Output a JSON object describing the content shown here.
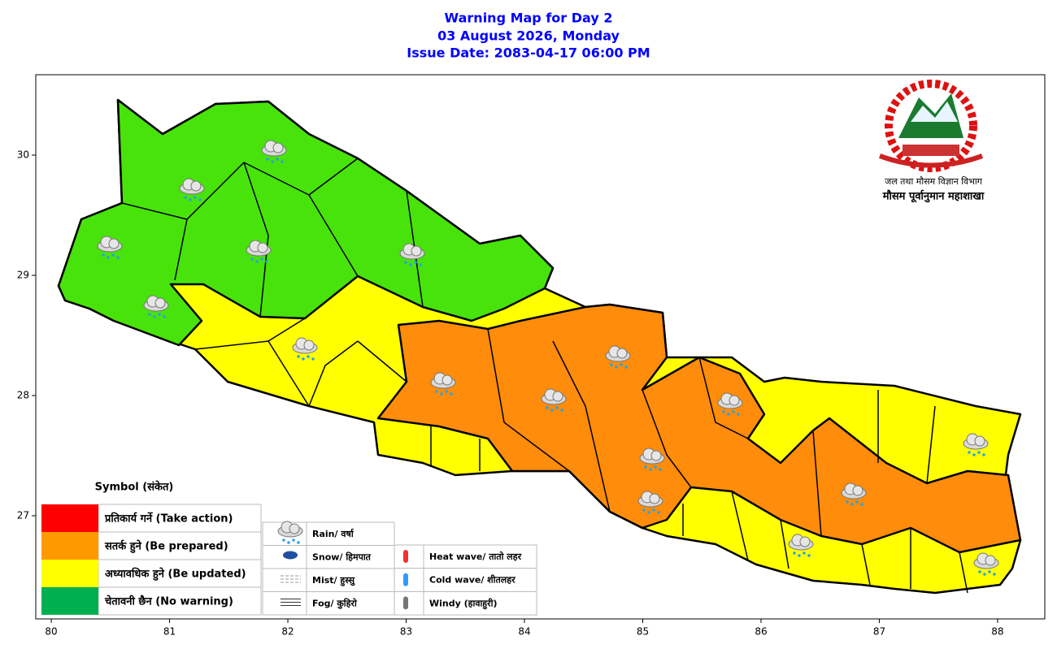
{
  "header": {
    "title": "Warning Map for Day 2",
    "date": "03 August 2026, Monday",
    "issue": "Issue Date: 2083-04-17 06:00 PM"
  },
  "map": {
    "xlim": [
      79.869,
      88.399
    ],
    "ylim": [
      26.142,
      30.669
    ],
    "xticks": [
      80,
      81,
      82,
      83,
      84,
      85,
      86,
      87,
      88
    ],
    "yticks": [
      27,
      28,
      29,
      30
    ]
  },
  "logo": {
    "line1": "जल तथा मौसम विज्ञान विभाग",
    "line2": "मौसम पूर्वानुमान महाशाखा"
  },
  "legend": {
    "title": "Symbol (संकेत)",
    "levels": [
      {
        "label": "प्रतिकार्य गर्ने (Take action)",
        "color": "#ff0000"
      },
      {
        "label": "सतर्क हुने (Be prepared)",
        "color": "#ff9900"
      },
      {
        "label": "अध्यावधिक हुने (Be updated)",
        "color": "#ffff00"
      },
      {
        "label": "चेतावनी छैन (No warning)",
        "color": "#00b050"
      }
    ],
    "symbols": [
      "Rain/ वर्षा",
      "Snow/ हिमपात",
      "Mist/ हुस्सु",
      "Fog/ कुहिरो"
    ],
    "symbols2": [
      "Heat wave/ तातो लहर",
      "Cold wave/ शीतलहर",
      "Windy (हावाहुरी)"
    ]
  }
}
